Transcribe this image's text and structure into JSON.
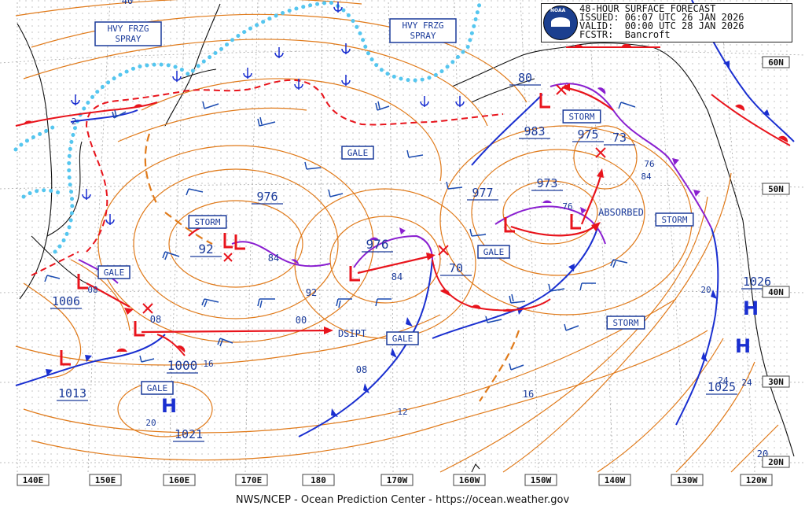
{
  "header": {
    "title": "48-HOUR SURFACE FORECAST",
    "issued": "ISSUED: 06:07 UTC 26 JAN 2026",
    "valid": "VALID:  00:00 UTC 28 JAN 2026",
    "forecaster": "FCSTR:  Bancroft",
    "logo_text": "NOAA"
  },
  "footer": "NWS/NCEP - Ocean Prediction Center - https://ocean.weather.gov",
  "longitude_labels": [
    "140E",
    "150E",
    "160E",
    "170E",
    "180",
    "170W",
    "160W",
    "150W",
    "140W",
    "130W",
    "120W"
  ],
  "latitude_labels": [
    "60N",
    "50N",
    "40N",
    "30N",
    "20N"
  ],
  "warnings": [
    {
      "text": "HVY FRZG SPRAY"
    },
    {
      "text": "HVY FRZG SPRAY"
    },
    {
      "text": "GALE"
    },
    {
      "text": "STORM"
    },
    {
      "text": "GALE"
    },
    {
      "text": "GALE"
    },
    {
      "text": "GALE"
    },
    {
      "text": "STORM"
    },
    {
      "text": "GALE"
    },
    {
      "text": "STORM"
    },
    {
      "text": "STORM"
    }
  ],
  "pressure_labels": [
    "976",
    "92",
    "84",
    "976",
    "84",
    "92",
    "00",
    "08",
    "1006",
    "08",
    "08",
    "1013",
    "1000",
    "16",
    "1021",
    "20",
    "983",
    "975",
    "73",
    "76",
    "84",
    "977",
    "973",
    "76",
    "70",
    "12",
    "16",
    "1026",
    "20",
    "24",
    "1025",
    "24",
    "20",
    "80",
    "40",
    "2"
  ],
  "lows": [
    {
      "pressure": "976"
    },
    {
      "pressure": "92"
    },
    {
      "pressure": "1006"
    },
    {
      "pressure": "977"
    },
    {
      "pressure": "973"
    },
    {
      "pressure": "975"
    },
    {
      "pressure": "983"
    }
  ],
  "highs": [
    {
      "pressure": "1021",
      "symbol": "H"
    },
    {
      "pressure": "1026",
      "symbol": "H"
    },
    {
      "pressure": "1025",
      "symbol": "H"
    }
  ],
  "annotations": [
    "DSIPT",
    "ABSORBED"
  ],
  "colors": {
    "isobar": "#e07a1a",
    "warm_front": "#e8141c",
    "cold_front": "#1a2fd0",
    "occluded_front": "#8a1fd0",
    "ice_edge": "#55c6ef",
    "freezing_spray": "#e8141c",
    "grid": "#b0b0b0",
    "land": "#111111",
    "label": "#1a3a9a"
  }
}
